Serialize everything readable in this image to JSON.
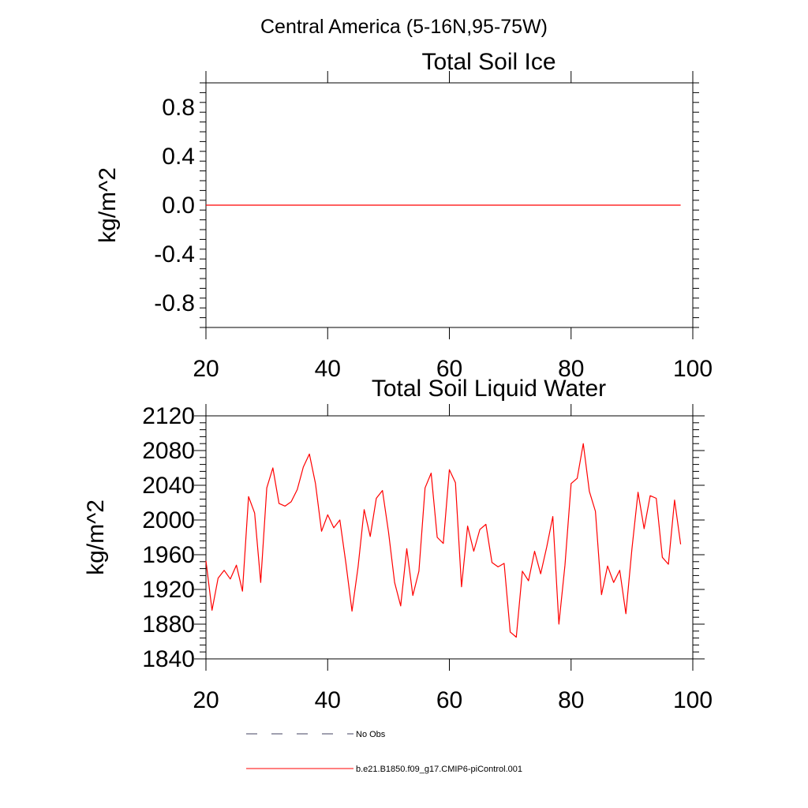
{
  "figure_title": "Central America (5-16N,95-75W)",
  "chart_data": [
    {
      "type": "line",
      "title": "Total Soil Ice",
      "xlabel": "",
      "ylabel": "kg/m^2",
      "xlim": [
        20,
        100
      ],
      "ylim": [
        -1.0,
        1.0
      ],
      "xticks": [
        20,
        40,
        60,
        80,
        100
      ],
      "yticks": [
        -0.8,
        -0.4,
        0.0,
        0.4,
        0.8
      ],
      "ytick_labels": [
        "-0.8",
        "-0.4",
        "0.0",
        "0.4",
        "0.8"
      ],
      "grid": false,
      "series": [
        {
          "color": "#ff0000",
          "x": [
            20,
            98
          ],
          "y": [
            0.0,
            0.0
          ]
        }
      ]
    },
    {
      "type": "line",
      "title": "Total Soil Liquid Water",
      "xlabel": "",
      "ylabel": "kg/m^2",
      "xlim": [
        20,
        100
      ],
      "ylim": [
        1840,
        2120
      ],
      "xticks": [
        20,
        40,
        60,
        80,
        100
      ],
      "yticks": [
        1840,
        1880,
        1920,
        1960,
        2000,
        2040,
        2080,
        2120
      ],
      "ytick_labels": [
        "1840",
        "1880",
        "1920",
        "1960",
        "2000",
        "2040",
        "2080",
        "2120"
      ],
      "grid": false,
      "series": [
        {
          "color": "#ff0000",
          "x": [
            20,
            21,
            22,
            23,
            24,
            25,
            26,
            27,
            28,
            29,
            30,
            31,
            32,
            33,
            34,
            35,
            36,
            37,
            38,
            39,
            40,
            41,
            42,
            43,
            44,
            45,
            46,
            47,
            48,
            49,
            50,
            51,
            52,
            53,
            54,
            55,
            56,
            57,
            58,
            59,
            60,
            61,
            62,
            63,
            64,
            65,
            66,
            67,
            68,
            69,
            70,
            71,
            72,
            73,
            74,
            75,
            76,
            77,
            78,
            79,
            80,
            81,
            82,
            83,
            84,
            85,
            86,
            87,
            88,
            89,
            90,
            91,
            92,
            93,
            94,
            95,
            96,
            97,
            98
          ],
          "y": [
            1953,
            1896,
            1933,
            1942,
            1932,
            1948,
            1918,
            2027,
            2008,
            1928,
            2037,
            2060,
            2019,
            2016,
            2021,
            2035,
            2061,
            2076,
            2042,
            1987,
            2006,
            1991,
            2000,
            1950,
            1895,
            1946,
            2012,
            1981,
            2025,
            2034,
            1986,
            1928,
            1901,
            1967,
            1913,
            1941,
            2037,
            2054,
            1980,
            1973,
            2058,
            2043,
            1923,
            1993,
            1964,
            1989,
            1995,
            1951,
            1946,
            1950,
            1871,
            1865,
            1941,
            1930,
            1964,
            1938,
            1969,
            2004,
            1880,
            1948,
            2042,
            2048,
            2088,
            2033,
            2010,
            1914,
            1947,
            1928,
            1942,
            1892,
            1967,
            2032,
            1990,
            2028,
            2025,
            1957,
            1949,
            2023,
            1972
          ]
        }
      ]
    }
  ],
  "legend": {
    "placement": "bottom",
    "entries": [
      {
        "label": "No Obs",
        "color": "#404060",
        "style": "dashed"
      },
      {
        "label": "b.e21.B1850.f09_g17.CMIP6-piControl.001",
        "color": "#ff0000",
        "style": "solid"
      }
    ]
  }
}
